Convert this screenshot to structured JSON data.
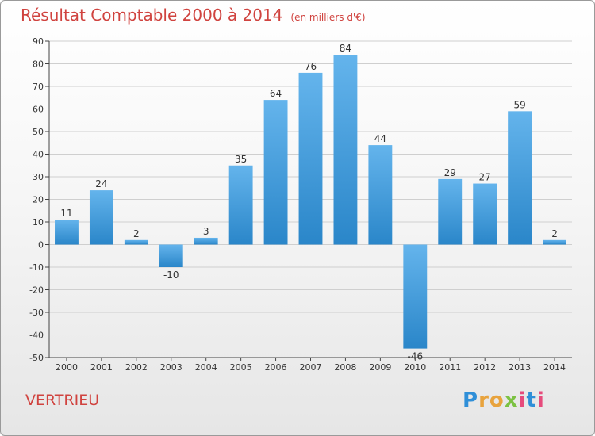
{
  "title": "Résultat Comptable 2000 à 2014",
  "subtitle": "(en milliers d'€)",
  "commune": "VERTRIEU",
  "brand": {
    "letters": [
      {
        "char": "P",
        "color": "#2f8fd8"
      },
      {
        "char": "r",
        "color": "#e8a33d"
      },
      {
        "char": "o",
        "color": "#e8a33d"
      },
      {
        "char": "x",
        "color": "#7cc243"
      },
      {
        "char": "i",
        "color": "#e64b7c"
      },
      {
        "char": "t",
        "color": "#2f8fd8"
      },
      {
        "char": "i",
        "color": "#e64b7c"
      }
    ]
  },
  "colors": {
    "bar_light": "#64b4ec",
    "bar_dark": "#2a86c9",
    "grid": "#cfcfcf",
    "axis": "#444444",
    "title": "#d0433f"
  },
  "chart_data": {
    "type": "bar",
    "title": "Résultat Comptable 2000 à 2014",
    "unit": "en milliers d'€",
    "categories": [
      "2000",
      "2001",
      "2002",
      "2003",
      "2004",
      "2005",
      "2006",
      "2007",
      "2008",
      "2009",
      "2010",
      "2011",
      "2012",
      "2013",
      "2014"
    ],
    "values": [
      11,
      24,
      2,
      -10,
      3,
      35,
      64,
      76,
      84,
      44,
      -46,
      29,
      27,
      59,
      2
    ],
    "ylim": [
      -50,
      90
    ],
    "yticks": [
      -50,
      -40,
      -30,
      -20,
      -10,
      0,
      10,
      20,
      30,
      40,
      50,
      60,
      70,
      80,
      90
    ],
    "grid": true,
    "xlabel": "",
    "ylabel": ""
  }
}
